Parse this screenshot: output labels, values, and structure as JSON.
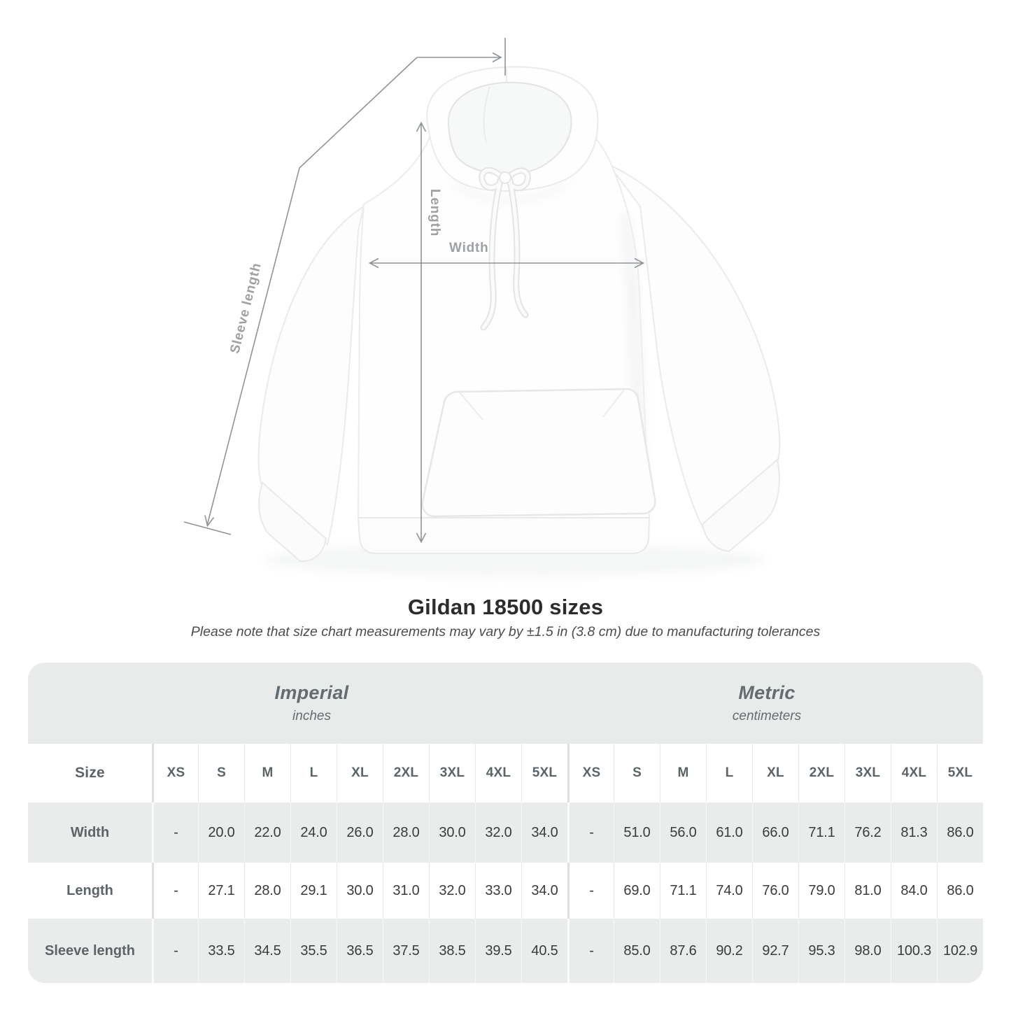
{
  "figure": {
    "length_label": "Length",
    "width_label": "Width",
    "sleeve_label": "Sleeve length"
  },
  "title": "Gildan 18500 sizes",
  "note": "Please note that size chart measurements may vary by ±1.5 in (3.8 cm) due to manufacturing tolerances",
  "size_table": {
    "corner_label": "Size",
    "sections": [
      {
        "name": "Imperial",
        "unit": "inches"
      },
      {
        "name": "Metric",
        "unit": "centimeters"
      }
    ],
    "sizes": [
      "XS",
      "S",
      "M",
      "L",
      "XL",
      "2XL",
      "3XL",
      "4XL",
      "5XL"
    ],
    "rows": [
      {
        "label": "Width",
        "imperial": [
          "-",
          "20.0",
          "22.0",
          "24.0",
          "26.0",
          "28.0",
          "30.0",
          "32.0",
          "34.0"
        ],
        "metric": [
          "-",
          "51.0",
          "56.0",
          "61.0",
          "66.0",
          "71.1",
          "76.2",
          "81.3",
          "86.0"
        ]
      },
      {
        "label": "Length",
        "imperial": [
          "-",
          "27.1",
          "28.0",
          "29.1",
          "30.0",
          "31.0",
          "32.0",
          "33.0",
          "34.0"
        ],
        "metric": [
          "-",
          "69.0",
          "71.1",
          "74.0",
          "76.0",
          "79.0",
          "81.0",
          "84.0",
          "86.0"
        ]
      },
      {
        "label": "Sleeve length",
        "imperial": [
          "-",
          "33.5",
          "34.5",
          "35.5",
          "36.5",
          "37.5",
          "38.5",
          "39.5",
          "40.5"
        ],
        "metric": [
          "-",
          "85.0",
          "87.6",
          "90.2",
          "92.7",
          "95.3",
          "98.0",
          "100.3",
          "102.9"
        ]
      }
    ]
  },
  "colors": {
    "table_band": "#e9eaea",
    "table_row_alt": "#eaebeb",
    "header_text": "#5d6468",
    "value_text": "#393c3e",
    "measure_line": "#8f9498",
    "measure_label_text": "#9da1a4",
    "title_text": "#2c2c2c",
    "note_text": "#4c4c4c"
  }
}
